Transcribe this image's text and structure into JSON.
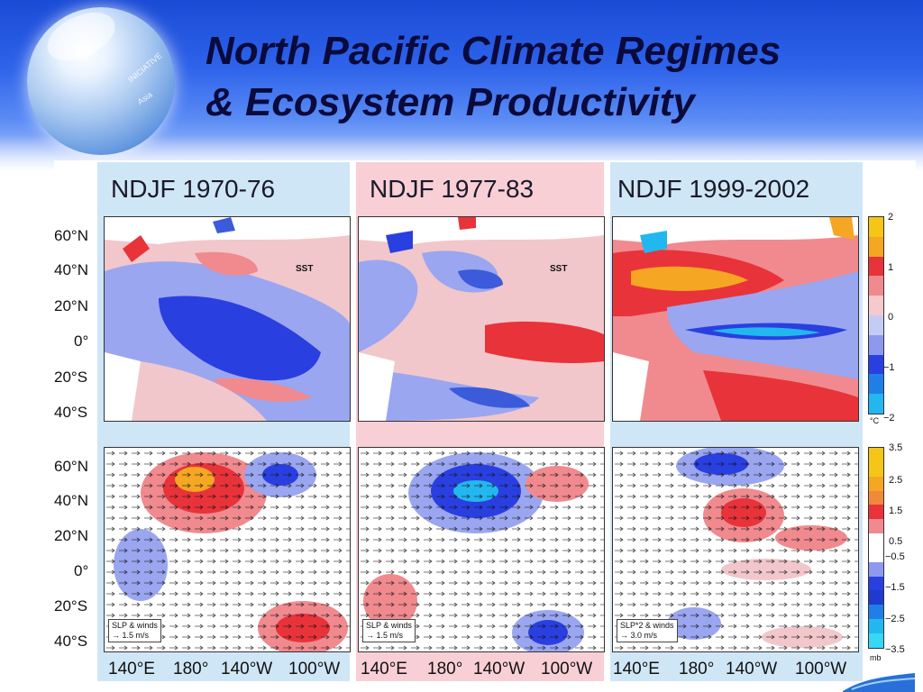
{
  "slide": {
    "title_line1": "North Pacific Climate Regimes",
    "title_line2": "& Ecosystem Productivity"
  },
  "globe": {
    "text1": "INICIATIVE",
    "text2": "Asia"
  },
  "panels": [
    {
      "period": "NDJF 1970-76",
      "bg": "#cfe6f7",
      "sst_tag": "SST",
      "legend_line1": "SLP & winds",
      "legend_line2": "1.5 m/s"
    },
    {
      "period": "NDJF 1977-83",
      "bg": "#f9cfd6",
      "sst_tag": "SST",
      "legend_line1": "SLP & winds",
      "legend_line2": "1.5 m/s"
    },
    {
      "period": "NDJF 1999-2002",
      "bg": "#cfe6f7",
      "legend_line1": "SLP*2 & winds",
      "legend_line2": "3.0 m/s"
    }
  ],
  "axes": {
    "lat_labels": [
      "60°N",
      "40°N",
      "20°N",
      "0°",
      "20°S",
      "40°S"
    ],
    "lon_labels": [
      "140°E",
      "180°",
      "140°W",
      "100°W"
    ]
  },
  "sst_colorbar": {
    "ticks": [
      "2",
      "1",
      "0",
      "−1",
      "−2"
    ],
    "unit": "°C"
  },
  "slp_colorbar": {
    "ticks": [
      "3.5",
      "2.5",
      "1.5",
      "0.5",
      "−0.5",
      "−1.5",
      "−2.5",
      "−3.5"
    ],
    "unit": "mb"
  },
  "colors": {
    "title": "#0a0a3c",
    "header_blue": "#2f63ea",
    "warm": "#e8333a",
    "cool": "#2a3fe0"
  }
}
